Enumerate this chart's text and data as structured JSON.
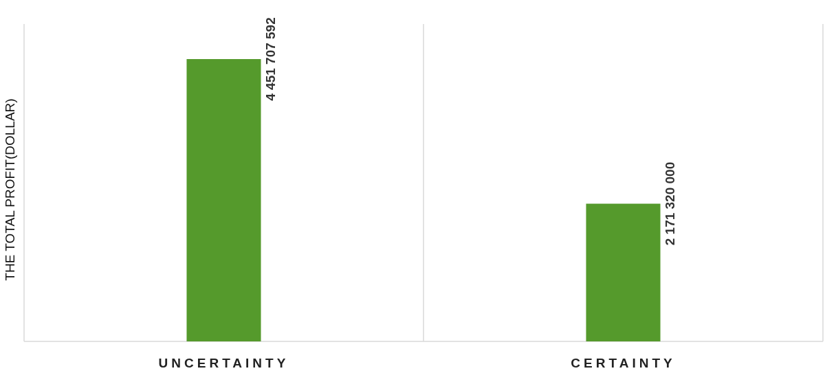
{
  "chart_data": {
    "type": "bar",
    "ylabel": "THE TOTAL PROFIT(DOLLAR)",
    "categories": [
      "UNCERTAINTY",
      "CERTAINTY"
    ],
    "values": [
      4451707592,
      2171320000
    ],
    "value_labels": [
      "4 451 707 592",
      "2 171 320 000"
    ],
    "color": "#559a2c",
    "grid": "x"
  }
}
